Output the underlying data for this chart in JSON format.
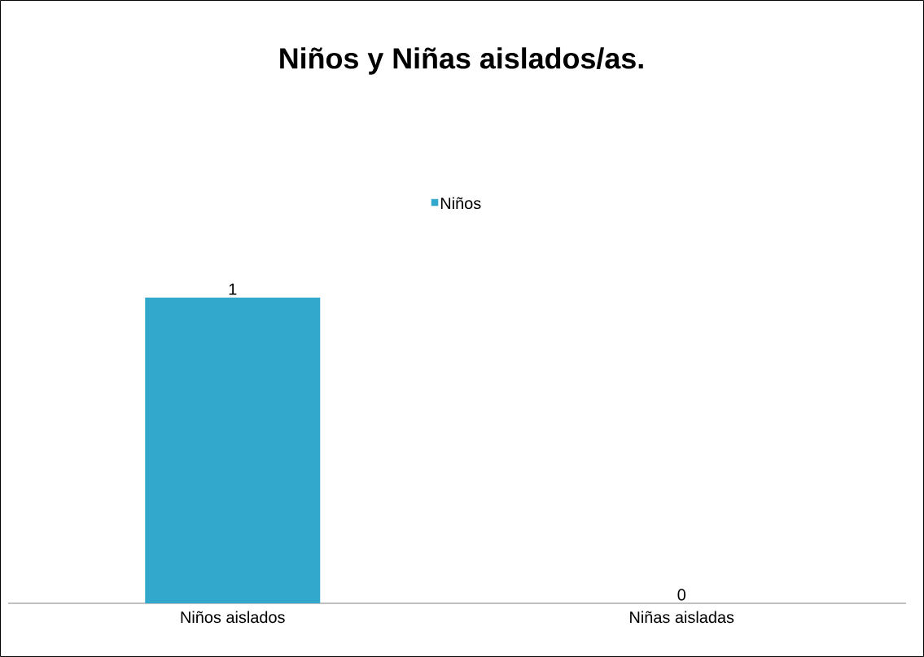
{
  "chart_data": {
    "type": "bar",
    "title": "Niños y Niñas aislados/as.",
    "categories": [
      "Niños aislados",
      "Niñas aisladas"
    ],
    "series": [
      {
        "name": "Niños",
        "color": "#31a8cc",
        "values": [
          1,
          0
        ]
      }
    ],
    "data_labels": true,
    "legend": "top"
  }
}
